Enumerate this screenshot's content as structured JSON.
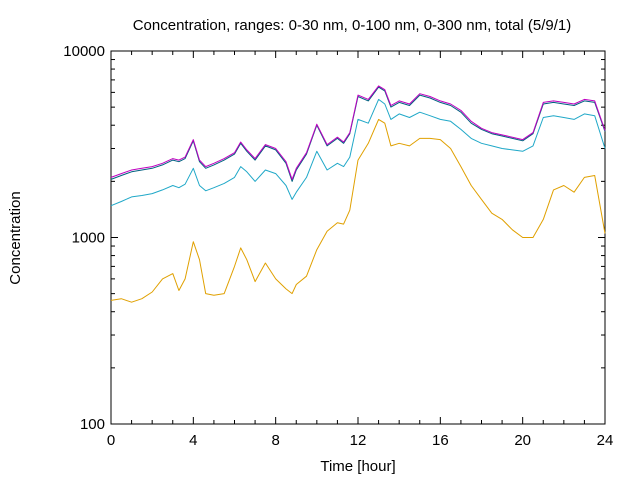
{
  "chart_data": {
    "type": "line",
    "title": "Concentration, ranges: 0-30 nm, 0-100 nm, 0-300 nm, total (5/9/1)",
    "xlabel": "Time [hour]",
    "ylabel": "Concentration",
    "xlim": [
      0,
      24
    ],
    "ylim": [
      100,
      10000
    ],
    "yscale": "log",
    "grid": false,
    "x_ticks": [
      0,
      4,
      8,
      12,
      16,
      20,
      24
    ],
    "y_ticks": [
      100,
      1000,
      10000
    ],
    "x_tick_labels": [
      "0",
      "4",
      "8",
      "12",
      "16",
      "20",
      "24"
    ],
    "y_tick_labels": [
      "100",
      "1000",
      "10000"
    ],
    "x": [
      0,
      0.5,
      1,
      1.5,
      2,
      2.5,
      3,
      3.3,
      3.6,
      4,
      4.3,
      4.6,
      5,
      5.5,
      6,
      6.3,
      6.6,
      7,
      7.5,
      8,
      8.5,
      8.8,
      9,
      9.5,
      10,
      10.5,
      11,
      11.3,
      11.6,
      12,
      12.5,
      13,
      13.3,
      13.6,
      14,
      14.5,
      15,
      15.5,
      16,
      16.5,
      17,
      17.5,
      18,
      18.5,
      19,
      19.5,
      20,
      20.5,
      21,
      21.5,
      22,
      22.5,
      23,
      23.5,
      24
    ],
    "series": [
      {
        "color": "#e0a000",
        "values": [
          460,
          470,
          450,
          470,
          510,
          600,
          640,
          520,
          600,
          950,
          760,
          500,
          490,
          500,
          700,
          880,
          760,
          580,
          730,
          600,
          530,
          500,
          560,
          620,
          860,
          1080,
          1200,
          1180,
          1400,
          2600,
          3200,
          4300,
          4100,
          3100,
          3200,
          3100,
          3400,
          3400,
          3350,
          3000,
          2400,
          1900,
          1600,
          1350,
          1250,
          1100,
          1000,
          1000,
          1250,
          1800,
          1900,
          1750,
          2100,
          2150,
          1050
        ]
      },
      {
        "color": "#20a8c8",
        "values": [
          1480,
          1560,
          1650,
          1680,
          1720,
          1800,
          1900,
          1850,
          1930,
          2350,
          1900,
          1780,
          1850,
          1950,
          2100,
          2400,
          2250,
          2000,
          2300,
          2200,
          1900,
          1600,
          1750,
          2100,
          2900,
          2300,
          2500,
          2400,
          2700,
          4300,
          4100,
          5500,
          5200,
          4300,
          4600,
          4400,
          4700,
          4500,
          4300,
          4200,
          3800,
          3400,
          3200,
          3100,
          3000,
          2950,
          2900,
          3100,
          4400,
          4500,
          4400,
          4300,
          4600,
          4500,
          3000
        ]
      },
      {
        "color": "#006080",
        "values": [
          2050,
          2150,
          2250,
          2300,
          2350,
          2450,
          2600,
          2550,
          2650,
          3300,
          2550,
          2350,
          2450,
          2600,
          2800,
          3200,
          2900,
          2600,
          3100,
          2950,
          2500,
          2000,
          2300,
          2800,
          4000,
          3100,
          3400,
          3200,
          3600,
          5700,
          5400,
          6400,
          6100,
          5000,
          5300,
          5100,
          5800,
          5600,
          5300,
          5100,
          4700,
          4100,
          3800,
          3600,
          3500,
          3400,
          3300,
          3600,
          5200,
          5300,
          5200,
          5100,
          5400,
          5300,
          3700
        ]
      },
      {
        "color": "#c000c0",
        "values": [
          2100,
          2200,
          2300,
          2350,
          2400,
          2500,
          2650,
          2600,
          2700,
          3350,
          2600,
          2400,
          2500,
          2650,
          2850,
          3250,
          2950,
          2650,
          3150,
          3000,
          2550,
          2050,
          2350,
          2850,
          4050,
          3150,
          3450,
          3250,
          3650,
          5800,
          5500,
          6500,
          6200,
          5100,
          5400,
          5200,
          5900,
          5700,
          5400,
          5200,
          4800,
          4200,
          3850,
          3650,
          3550,
          3450,
          3350,
          3650,
          5300,
          5400,
          5300,
          5200,
          5500,
          5400,
          3750
        ]
      }
    ]
  }
}
